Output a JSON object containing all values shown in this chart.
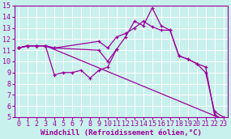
{
  "background_color": "#c8f0ec",
  "line_color": "#9b009b",
  "grid_color": "#ffffff",
  "xlabel": "Windchill (Refroidissement éolien,°C)",
  "xlabel_fontsize": 6.5,
  "tick_fontsize": 6.0,
  "xlim": [
    -0.5,
    23.5
  ],
  "ylim": [
    5,
    15
  ],
  "yticks": [
    5,
    6,
    7,
    8,
    9,
    10,
    11,
    12,
    13,
    14,
    15
  ],
  "xticks": [
    0,
    1,
    2,
    3,
    4,
    5,
    6,
    7,
    8,
    9,
    10,
    11,
    12,
    13,
    14,
    15,
    16,
    17,
    18,
    19,
    20,
    21,
    22,
    23
  ],
  "series": [
    {
      "x": [
        0,
        1,
        2,
        3,
        23
      ],
      "y": [
        11.2,
        11.4,
        11.4,
        11.4,
        4.8
      ]
    },
    {
      "x": [
        0,
        1,
        2,
        3,
        4,
        5,
        6,
        7,
        8,
        9,
        10,
        11
      ],
      "y": [
        11.2,
        11.4,
        11.4,
        11.4,
        8.8,
        9.0,
        9.0,
        9.2,
        8.5,
        9.2,
        9.5,
        11.1
      ]
    },
    {
      "x": [
        0,
        1,
        2,
        3,
        4,
        9,
        10,
        11,
        12,
        13,
        14,
        15,
        16,
        17,
        18,
        19,
        20,
        21,
        22,
        23
      ],
      "y": [
        11.2,
        11.4,
        11.4,
        11.4,
        11.2,
        11.0,
        10.0,
        11.1,
        12.2,
        13.6,
        13.2,
        14.8,
        13.2,
        12.8,
        10.5,
        10.2,
        9.8,
        9.5,
        5.2,
        4.8
      ]
    },
    {
      "x": [
        0,
        1,
        2,
        3,
        4,
        9,
        10,
        11,
        12,
        13,
        14,
        15,
        16,
        17,
        18,
        19,
        20,
        21,
        22,
        23
      ],
      "y": [
        11.2,
        11.4,
        11.4,
        11.4,
        11.2,
        11.8,
        11.2,
        12.2,
        12.5,
        13.0,
        13.6,
        13.1,
        12.8,
        12.8,
        10.5,
        10.2,
        9.8,
        9.0,
        5.5,
        5.0
      ]
    }
  ]
}
